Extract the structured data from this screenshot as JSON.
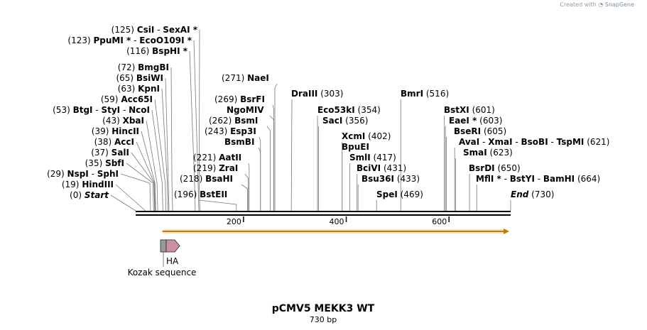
{
  "credit": {
    "prefix": "Created with",
    "brand": "SnapGene"
  },
  "title": "pCMV5 MEKK3 WT",
  "length_label": "730 bp",
  "length_bp": 730,
  "ruler": {
    "ticks": [
      200,
      400,
      600
    ]
  },
  "site_groups": [
    {
      "id": "csii",
      "pos": "(125)",
      "names": [
        "CsiI",
        "SexAI *"
      ],
      "cuts": [
        125,
        125
      ]
    },
    {
      "id": "ppumi",
      "pos": "(123)",
      "names": [
        "PpuMI *",
        "EcoO109I *"
      ],
      "cuts": [
        123,
        123
      ]
    },
    {
      "id": "bsphi",
      "pos": "(116)",
      "names": [
        "BspHI *"
      ],
      "cuts": [
        116
      ]
    },
    {
      "id": "bmgbi",
      "pos": "(72)",
      "names": [
        "BmgBI"
      ],
      "cuts": [
        72
      ]
    },
    {
      "id": "bsiwi",
      "pos": "(65)",
      "names": [
        "BsiWI"
      ],
      "cuts": [
        65
      ]
    },
    {
      "id": "kpni",
      "pos": "(63)",
      "names": [
        "KpnI"
      ],
      "cuts": [
        63
      ]
    },
    {
      "id": "acc65i",
      "pos": "(59)",
      "names": [
        "Acc65I"
      ],
      "cuts": [
        59
      ]
    },
    {
      "id": "btgi",
      "pos": "(53)",
      "names": [
        "BtgI",
        "StyI",
        "NcoI"
      ],
      "cuts": [
        53,
        53,
        53
      ]
    },
    {
      "id": "xbai",
      "pos": "(43)",
      "names": [
        "XbaI"
      ],
      "cuts": [
        43
      ]
    },
    {
      "id": "hincii",
      "pos": "(39)",
      "names": [
        "HincII"
      ],
      "cuts": [
        39
      ]
    },
    {
      "id": "acci",
      "pos": "(38)",
      "names": [
        "AccI"
      ],
      "cuts": [
        38
      ]
    },
    {
      "id": "sali",
      "pos": "(37)",
      "names": [
        "SalI"
      ],
      "cuts": [
        37
      ]
    },
    {
      "id": "sbfi",
      "pos": "(35)",
      "names": [
        "SbfI"
      ],
      "cuts": [
        35
      ]
    },
    {
      "id": "nspi",
      "pos": "(29)",
      "names": [
        "NspI",
        "SphI"
      ],
      "cuts": [
        29,
        29
      ]
    },
    {
      "id": "hindiii",
      "pos": "(19)",
      "names": [
        "HindIII"
      ],
      "cuts": [
        19
      ]
    },
    {
      "id": "start",
      "pos": "(0)",
      "names": [
        "Start"
      ],
      "cuts": [
        0
      ]
    },
    {
      "id": "nael",
      "pos": "(271)",
      "names": [
        "NaeI"
      ],
      "cuts": [
        271
      ]
    },
    {
      "id": "bsrfi",
      "pos": "(269)",
      "names": [
        "BsrFI"
      ],
      "cuts": [
        269
      ]
    },
    {
      "id": "ngomiv",
      "pos": "",
      "names": [
        "NgoMIV"
      ],
      "cuts": [
        269
      ]
    },
    {
      "id": "bsmi",
      "pos": "(262)",
      "names": [
        "BsmI"
      ],
      "cuts": [
        262
      ]
    },
    {
      "id": "esp3i",
      "pos": "(243)",
      "names": [
        "Esp3I"
      ],
      "cuts": [
        243
      ]
    },
    {
      "id": "bsmbi",
      "pos": "",
      "names": [
        "BsmBI"
      ],
      "cuts": [
        243
      ]
    },
    {
      "id": "aatii",
      "pos": "(221)",
      "names": [
        "AatII"
      ],
      "cuts": [
        221
      ]
    },
    {
      "id": "zrai",
      "pos": "(219)",
      "names": [
        "ZraI"
      ],
      "cuts": [
        219
      ]
    },
    {
      "id": "bsahi",
      "pos": "(218)",
      "names": [
        "BsaHI"
      ],
      "cuts": [
        218
      ]
    },
    {
      "id": "bsteii",
      "pos": "(196)",
      "names": [
        "BstEII"
      ],
      "cuts": [
        196
      ]
    },
    {
      "id": "draiii",
      "pos": "(303)",
      "names": [
        "DraIII"
      ],
      "cuts": [
        303
      ]
    },
    {
      "id": "eco53ki",
      "pos": "(354)",
      "names": [
        "Eco53kI"
      ],
      "cuts": [
        354
      ]
    },
    {
      "id": "saci",
      "pos": "(356)",
      "names": [
        "SacI"
      ],
      "cuts": [
        356
      ]
    },
    {
      "id": "xcmi",
      "pos": "(402)",
      "names": [
        "XcmI"
      ],
      "cuts": [
        402
      ]
    },
    {
      "id": "bpuei",
      "pos": "",
      "names": [
        "BpuEI"
      ],
      "cuts": [
        402
      ]
    },
    {
      "id": "smli",
      "pos": "(417)",
      "names": [
        "SmlI"
      ],
      "cuts": [
        417
      ]
    },
    {
      "id": "bcivi",
      "pos": "(431)",
      "names": [
        "BciVI"
      ],
      "cuts": [
        431
      ]
    },
    {
      "id": "bsu36i",
      "pos": "(433)",
      "names": [
        "Bsu36I"
      ],
      "cuts": [
        433
      ]
    },
    {
      "id": "spei",
      "pos": "(469)",
      "names": [
        "SpeI"
      ],
      "cuts": [
        469
      ]
    },
    {
      "id": "bmri",
      "pos": "(516)",
      "names": [
        "BmrI"
      ],
      "cuts": [
        516
      ]
    },
    {
      "id": "bstxi",
      "pos": "(601)",
      "names": [
        "BstXI"
      ],
      "cuts": [
        601
      ]
    },
    {
      "id": "eaei",
      "pos": "(603)",
      "names": [
        "EaeI *"
      ],
      "cuts": [
        603
      ]
    },
    {
      "id": "bseri",
      "pos": "(605)",
      "names": [
        "BseRI"
      ],
      "cuts": [
        605
      ]
    },
    {
      "id": "avai",
      "pos": "(621)",
      "names": [
        "AvaI",
        "XmaI",
        "BsoBI",
        "TspMI"
      ],
      "cuts": [
        621,
        621,
        621,
        621
      ]
    },
    {
      "id": "smai",
      "pos": "(623)",
      "names": [
        "SmaI"
      ],
      "cuts": [
        623
      ]
    },
    {
      "id": "bsrdi",
      "pos": "(650)",
      "names": [
        "BsrDI"
      ],
      "cuts": [
        650
      ]
    },
    {
      "id": "mfli",
      "pos": "(664)",
      "names": [
        "MflI *",
        "BstYI",
        "BamHI"
      ],
      "cuts": [
        664,
        664,
        664
      ]
    },
    {
      "id": "end",
      "pos": "(730)",
      "names": [
        "End"
      ],
      "cuts": [
        730
      ]
    }
  ],
  "features": {
    "orf": {
      "start": 52,
      "end": 730,
      "color": "#f0a030"
    },
    "kozak": {
      "label": "Kozak sequence",
      "color": "#9a9a9a"
    },
    "ha": {
      "label": "HA",
      "color": "#c98fa6"
    }
  }
}
